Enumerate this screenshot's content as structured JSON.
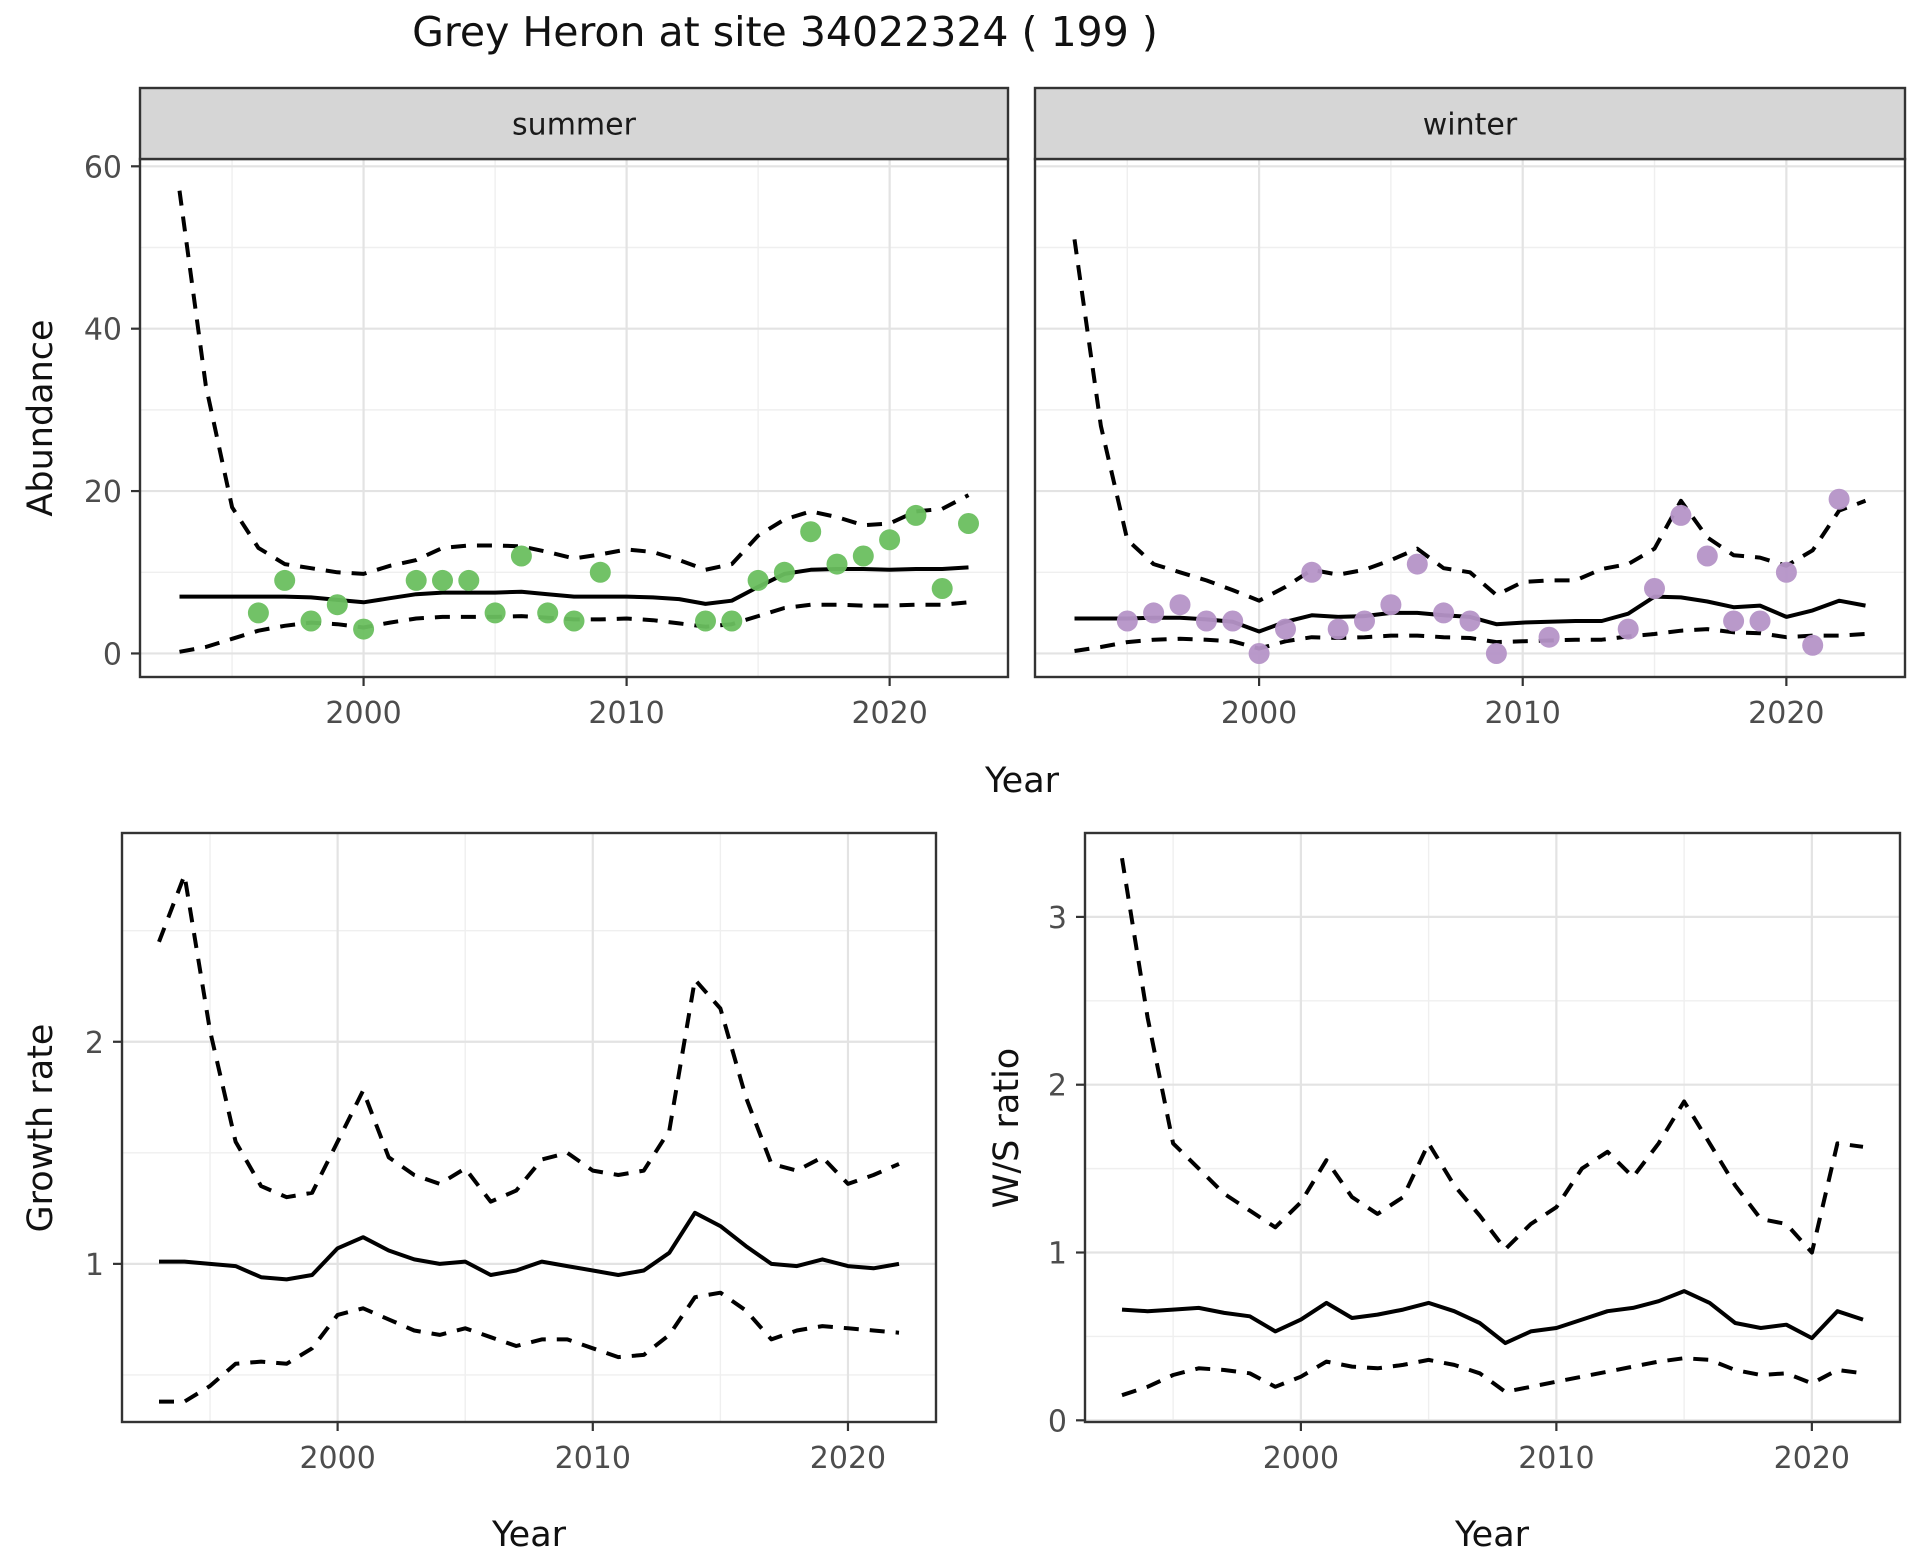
{
  "title": "Grey Heron at site 34022324 ( 199 )",
  "labels": {
    "abundance": "Abundance",
    "year": "Year",
    "growth_rate": "Growth rate",
    "ws_ratio": "W/S ratio"
  },
  "colors": {
    "summer_point": "#6abf5f",
    "winter_point": "#b593c7",
    "line": "#000000",
    "grid_major": "#e3e3e3",
    "grid_minor": "#efefef",
    "panel_border": "#333333",
    "strip_background": "#d6d6d6",
    "tick_text": "#4d4d4d"
  },
  "chart_data": [
    {
      "id": "summer",
      "type": "line",
      "facet_label": "summer",
      "xlabel": "Year",
      "ylabel": "Abundance",
      "xlim": [
        1991.5,
        2024.5
      ],
      "ylim": [
        -2.9,
        60.9
      ],
      "x_ticks": [
        2000,
        2010,
        2020
      ],
      "y_ticks": [
        0,
        20,
        40,
        60
      ],
      "x_minor": [
        1995,
        2005,
        2015
      ],
      "y_minor": [
        10,
        30,
        50
      ],
      "show_y_labels": true,
      "grid": true,
      "point_color": "#6abf5f",
      "points": {
        "x": [
          1996,
          1997,
          1998,
          1999,
          2000,
          2002,
          2003,
          2004,
          2005,
          2006,
          2007,
          2008,
          2009,
          2013,
          2014,
          2015,
          2016,
          2017,
          2018,
          2019,
          2020,
          2021,
          2022,
          2023
        ],
        "y": [
          5,
          9,
          4,
          6,
          3,
          9,
          9,
          9,
          5,
          12,
          5,
          4,
          10,
          4,
          4,
          9,
          10,
          15,
          11,
          12,
          14,
          17,
          8,
          16
        ]
      },
      "series": [
        {
          "name": "upper_ci",
          "style": "dashed",
          "x": [
            1993,
            1994,
            1995,
            1996,
            1997,
            1998,
            1999,
            2000,
            2001,
            2002,
            2003,
            2004,
            2005,
            2006,
            2007,
            2008,
            2009,
            2010,
            2011,
            2012,
            2013,
            2014,
            2015,
            2016,
            2017,
            2018,
            2019,
            2020,
            2021,
            2022,
            2023
          ],
          "y": [
            57,
            33,
            18,
            13,
            11,
            10.5,
            10,
            9.8,
            10.8,
            11.5,
            13,
            13.3,
            13.3,
            13.2,
            12.5,
            11.7,
            12.2,
            12.8,
            12.5,
            11.5,
            10.3,
            11,
            14.5,
            16.5,
            17.5,
            16.8,
            15.8,
            16,
            17.5,
            17.8,
            19.5
          ]
        },
        {
          "name": "fit",
          "style": "solid",
          "x": [
            1993,
            1994,
            1995,
            1996,
            1997,
            1998,
            1999,
            2000,
            2001,
            2002,
            2003,
            2004,
            2005,
            2006,
            2007,
            2008,
            2009,
            2010,
            2011,
            2012,
            2013,
            2014,
            2015,
            2016,
            2017,
            2018,
            2019,
            2020,
            2021,
            2022,
            2023
          ],
          "y": [
            7,
            7,
            7,
            7,
            7,
            6.9,
            6.6,
            6.3,
            6.8,
            7.3,
            7.5,
            7.5,
            7.5,
            7.6,
            7.3,
            7,
            7,
            7,
            6.9,
            6.7,
            6.1,
            6.5,
            8.2,
            9.8,
            10.3,
            10.4,
            10.4,
            10.3,
            10.4,
            10.4,
            10.6
          ]
        },
        {
          "name": "lower_ci",
          "style": "dashed",
          "x": [
            1993,
            1994,
            1995,
            1996,
            1997,
            1998,
            1999,
            2000,
            2001,
            2002,
            2003,
            2004,
            2005,
            2006,
            2007,
            2008,
            2009,
            2010,
            2011,
            2012,
            2013,
            2014,
            2015,
            2016,
            2017,
            2018,
            2019,
            2020,
            2021,
            2022,
            2023
          ],
          "y": [
            0.2,
            0.8,
            1.8,
            2.8,
            3.4,
            3.8,
            3.6,
            3.2,
            3.8,
            4.3,
            4.5,
            4.5,
            4.5,
            4.6,
            4.4,
            4.2,
            4.2,
            4.3,
            4.1,
            3.7,
            3.3,
            3.6,
            4.6,
            5.6,
            6,
            6,
            5.9,
            5.9,
            6,
            6,
            6.3
          ]
        }
      ]
    },
    {
      "id": "winter",
      "type": "line",
      "facet_label": "winter",
      "xlabel": "Year",
      "ylabel": "Abundance",
      "xlim": [
        1991.5,
        2024.5
      ],
      "ylim": [
        -2.9,
        60.9
      ],
      "x_ticks": [
        2000,
        2010,
        2020
      ],
      "y_ticks": [
        0,
        20,
        40,
        60
      ],
      "x_minor": [
        1995,
        2005,
        2015
      ],
      "y_minor": [
        10,
        30,
        50
      ],
      "show_y_labels": false,
      "grid": true,
      "point_color": "#b593c7",
      "points": {
        "x": [
          1995,
          1996,
          1997,
          1998,
          1999,
          2000,
          2001,
          2002,
          2003,
          2004,
          2005,
          2006,
          2007,
          2008,
          2009,
          2011,
          2014,
          2015,
          2016,
          2017,
          2018,
          2019,
          2020,
          2021,
          2022
        ],
        "y": [
          4,
          5,
          6,
          4,
          4,
          0,
          3,
          10,
          3,
          4,
          6,
          11,
          5,
          4,
          0,
          2,
          3,
          8,
          17,
          12,
          4,
          4,
          10,
          1,
          19
        ]
      },
      "series": [
        {
          "name": "upper_ci",
          "style": "dashed",
          "x": [
            1993,
            1994,
            1995,
            1996,
            1997,
            1998,
            1999,
            2000,
            2001,
            2002,
            2003,
            2004,
            2005,
            2006,
            2007,
            2008,
            2009,
            2010,
            2011,
            2012,
            2013,
            2014,
            2015,
            2016,
            2017,
            2018,
            2019,
            2020,
            2021,
            2022,
            2023
          ],
          "y": [
            51,
            28,
            14,
            11,
            10,
            9,
            7.8,
            6.5,
            8.2,
            10.3,
            9.7,
            10.3,
            11.5,
            12.9,
            10.5,
            10,
            7.2,
            8.8,
            9,
            9,
            10.4,
            11,
            12.9,
            18.8,
            14.3,
            12.1,
            11.8,
            10.8,
            12.7,
            17.6,
            18.8
          ]
        },
        {
          "name": "fit",
          "style": "solid",
          "x": [
            1993,
            1994,
            1995,
            1996,
            1997,
            1998,
            1999,
            2000,
            2001,
            2002,
            2003,
            2004,
            2005,
            2006,
            2007,
            2008,
            2009,
            2010,
            2011,
            2012,
            2013,
            2014,
            2015,
            2016,
            2017,
            2018,
            2019,
            2020,
            2021,
            2022,
            2023
          ],
          "y": [
            4.3,
            4.3,
            4.3,
            4.4,
            4.4,
            4.2,
            3.9,
            2.7,
            3.9,
            4.7,
            4.5,
            4.6,
            5,
            5,
            4.7,
            4.5,
            3.6,
            3.8,
            3.9,
            4,
            4,
            4.9,
            7,
            6.9,
            6.4,
            5.7,
            5.9,
            4.5,
            5.3,
            6.5,
            5.9
          ]
        },
        {
          "name": "lower_ci",
          "style": "dashed",
          "x": [
            1993,
            1994,
            1995,
            1996,
            1997,
            1998,
            1999,
            2000,
            2001,
            2002,
            2003,
            2004,
            2005,
            2006,
            2007,
            2008,
            2009,
            2010,
            2011,
            2012,
            2013,
            2014,
            2015,
            2016,
            2017,
            2018,
            2019,
            2020,
            2021,
            2022,
            2023
          ],
          "y": [
            0.3,
            0.8,
            1.4,
            1.7,
            1.8,
            1.7,
            1.5,
            0.6,
            1.5,
            2,
            1.9,
            2,
            2.2,
            2.2,
            2,
            1.9,
            1.4,
            1.5,
            1.6,
            1.7,
            1.7,
            2.1,
            2.4,
            2.8,
            3,
            2.6,
            2.5,
            2,
            2.2,
            2.2,
            2.4
          ]
        }
      ]
    },
    {
      "id": "growth",
      "type": "line",
      "facet_label": null,
      "xlabel": "Year",
      "ylabel": "Growth rate",
      "xlim": [
        1991.55,
        2023.45
      ],
      "ylim": [
        0.288,
        2.94
      ],
      "x_ticks": [
        2000,
        2010,
        2020
      ],
      "y_ticks": [
        1,
        2
      ],
      "x_minor": [
        1995,
        2005,
        2015
      ],
      "y_minor": [
        0.5,
        1.5,
        2.5
      ],
      "show_y_labels": true,
      "grid": true,
      "point_color": null,
      "points": null,
      "series": [
        {
          "name": "upper_ci",
          "style": "dashed",
          "x": [
            1993,
            1994,
            1995,
            1996,
            1997,
            1998,
            1999,
            2000,
            2001,
            2002,
            2003,
            2004,
            2005,
            2006,
            2007,
            2008,
            2009,
            2010,
            2011,
            2012,
            2013,
            2014,
            2015,
            2016,
            2017,
            2018,
            2019,
            2020,
            2021,
            2022
          ],
          "y": [
            2.45,
            2.75,
            2.05,
            1.55,
            1.35,
            1.3,
            1.32,
            1.55,
            1.78,
            1.48,
            1.4,
            1.36,
            1.43,
            1.28,
            1.33,
            1.47,
            1.5,
            1.42,
            1.4,
            1.42,
            1.6,
            2.28,
            2.15,
            1.75,
            1.45,
            1.42,
            1.48,
            1.36,
            1.4,
            1.45
          ]
        },
        {
          "name": "fit",
          "style": "solid",
          "x": [
            1993,
            1994,
            1995,
            1996,
            1997,
            1998,
            1999,
            2000,
            2001,
            2002,
            2003,
            2004,
            2005,
            2006,
            2007,
            2008,
            2009,
            2010,
            2011,
            2012,
            2013,
            2014,
            2015,
            2016,
            2017,
            2018,
            2019,
            2020,
            2021,
            2022
          ],
          "y": [
            1.01,
            1.01,
            1,
            0.99,
            0.94,
            0.93,
            0.95,
            1.07,
            1.12,
            1.06,
            1.02,
            1,
            1.01,
            0.95,
            0.97,
            1.01,
            0.99,
            0.97,
            0.95,
            0.97,
            1.05,
            1.23,
            1.17,
            1.08,
            1,
            0.99,
            1.02,
            0.99,
            0.98,
            1
          ]
        },
        {
          "name": "lower_ci",
          "style": "dashed",
          "x": [
            1993,
            1994,
            1995,
            1996,
            1997,
            1998,
            1999,
            2000,
            2001,
            2002,
            2003,
            2004,
            2005,
            2006,
            2007,
            2008,
            2009,
            2010,
            2011,
            2012,
            2013,
            2014,
            2015,
            2016,
            2017,
            2018,
            2019,
            2020,
            2021,
            2022
          ],
          "y": [
            0.38,
            0.38,
            0.45,
            0.55,
            0.56,
            0.55,
            0.62,
            0.77,
            0.8,
            0.75,
            0.7,
            0.68,
            0.71,
            0.67,
            0.63,
            0.66,
            0.66,
            0.62,
            0.58,
            0.59,
            0.68,
            0.85,
            0.87,
            0.79,
            0.66,
            0.7,
            0.72,
            0.71,
            0.7,
            0.69
          ]
        }
      ]
    },
    {
      "id": "ws",
      "type": "line",
      "facet_label": null,
      "xlabel": "Year",
      "ylabel": "W/S ratio",
      "xlim": [
        1991.55,
        2023.45
      ],
      "ylim": [
        -0.01,
        3.5
      ],
      "x_ticks": [
        2000,
        2010,
        2020
      ],
      "y_ticks": [
        0,
        1,
        2,
        3
      ],
      "x_minor": [
        1995,
        2005,
        2015
      ],
      "y_minor": [
        0.5,
        1.5,
        2.5
      ],
      "show_y_labels": true,
      "grid": true,
      "point_color": null,
      "points": null,
      "series": [
        {
          "name": "upper_ci",
          "style": "dashed",
          "x": [
            1993,
            1994,
            1995,
            1996,
            1997,
            1998,
            1999,
            2000,
            2001,
            2002,
            2003,
            2004,
            2005,
            2006,
            2007,
            2008,
            2009,
            2010,
            2011,
            2012,
            2013,
            2014,
            2015,
            2016,
            2017,
            2018,
            2019,
            2020,
            2021,
            2022
          ],
          "y": [
            3.35,
            2.4,
            1.65,
            1.5,
            1.35,
            1.25,
            1.15,
            1.3,
            1.55,
            1.33,
            1.23,
            1.33,
            1.65,
            1.4,
            1.22,
            1.02,
            1.17,
            1.27,
            1.5,
            1.6,
            1.45,
            1.65,
            1.9,
            1.65,
            1.4,
            1.2,
            1.17,
            1,
            1.65,
            1.63
          ]
        },
        {
          "name": "fit",
          "style": "solid",
          "x": [
            1993,
            1994,
            1995,
            1996,
            1997,
            1998,
            1999,
            2000,
            2001,
            2002,
            2003,
            2004,
            2005,
            2006,
            2007,
            2008,
            2009,
            2010,
            2011,
            2012,
            2013,
            2014,
            2015,
            2016,
            2017,
            2018,
            2019,
            2020,
            2021,
            2022
          ],
          "y": [
            0.66,
            0.65,
            0.66,
            0.67,
            0.64,
            0.62,
            0.53,
            0.6,
            0.7,
            0.61,
            0.63,
            0.66,
            0.7,
            0.65,
            0.58,
            0.46,
            0.53,
            0.55,
            0.6,
            0.65,
            0.67,
            0.71,
            0.77,
            0.7,
            0.58,
            0.55,
            0.57,
            0.49,
            0.65,
            0.6
          ]
        },
        {
          "name": "lower_ci",
          "style": "dashed",
          "x": [
            1993,
            1994,
            1995,
            1996,
            1997,
            1998,
            1999,
            2000,
            2001,
            2002,
            2003,
            2004,
            2005,
            2006,
            2007,
            2008,
            2009,
            2010,
            2011,
            2012,
            2013,
            2014,
            2015,
            2016,
            2017,
            2018,
            2019,
            2020,
            2021,
            2022
          ],
          "y": [
            0.15,
            0.2,
            0.27,
            0.31,
            0.3,
            0.28,
            0.2,
            0.26,
            0.35,
            0.32,
            0.31,
            0.33,
            0.36,
            0.33,
            0.28,
            0.17,
            0.2,
            0.23,
            0.26,
            0.29,
            0.32,
            0.35,
            0.37,
            0.36,
            0.3,
            0.27,
            0.28,
            0.22,
            0.3,
            0.28
          ]
        }
      ]
    }
  ]
}
